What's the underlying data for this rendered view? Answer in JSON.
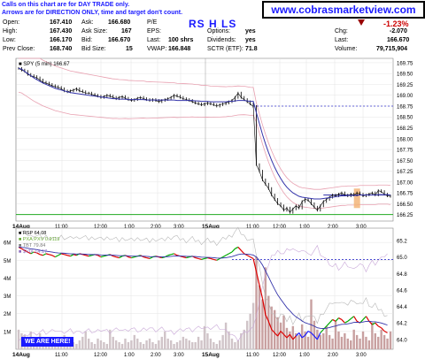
{
  "notice": {
    "line1": "Calls on this chart are for DAY TRADE only.",
    "line2": "Arrows are for DIRECTION ONLY, time and target don't count."
  },
  "ticker": "RS H LS",
  "site": "www.cobrasmarketview.com",
  "quote": {
    "open_label": "Open:",
    "open": "167.410",
    "high_label": "High:",
    "high": "167.430",
    "low_label": "Low:",
    "low": "166.170",
    "prev_label": "Prev Close:",
    "prev": "168.740",
    "ask_label": "Ask:",
    "ask": "166.680",
    "asksize_label": "Ask Size:",
    "asksize": "167",
    "bid_label": "Bid:",
    "bid": "166.670",
    "bidsize_label": "Bid Size:",
    "bidsize": "15",
    "pe_label": "P/E",
    "pe": "",
    "eps_label": "EPS:",
    "eps": "",
    "last_label": "Last:",
    "last": "100 shrs",
    "vwap_label": "VWAP:",
    "vwap": "166.848",
    "options_label": "Options:",
    "options": "yes",
    "dividends_label": "Dividends:",
    "dividends": "yes",
    "sctr_label": "SCTR (ETF):",
    "sctr": "71.8",
    "pct": "-1.23%",
    "chg_label": "Chg:",
    "chg": "-2.070",
    "last2_label": "Last:",
    "last2": "166.670",
    "volume_label": "Volume:",
    "volume": "79,715,904"
  },
  "badge": "WE ARE HERE!",
  "colors": {
    "accent": "#1a1aff",
    "neg": "#cc0000",
    "price": "#000000",
    "ma": "#3333aa",
    "band": "#e8a0b0",
    "highlight": "#f2b070"
  },
  "chart_data": [
    {
      "type": "line",
      "legend": [
        "SPY (5 min) 166.67"
      ],
      "xticks": [
        "14Aug",
        "11:00",
        "12:00",
        "1:00",
        "2:00",
        "3:00",
        "15Aug",
        "11:00",
        "12:00",
        "1:00",
        "2:00",
        "3:00"
      ],
      "yticks": [
        166.25,
        166.5,
        166.75,
        167.0,
        167.25,
        167.5,
        167.75,
        168.0,
        168.25,
        168.5,
        168.75,
        169.0,
        169.25,
        169.5,
        169.75
      ],
      "ylim": [
        166.1,
        169.85
      ],
      "x_session_index": [
        0,
        78,
        102
      ],
      "price_close": [
        169.62,
        169.58,
        169.55,
        169.48,
        169.45,
        169.43,
        169.4,
        169.35,
        169.3,
        169.28,
        169.25,
        169.22,
        169.2,
        169.18,
        169.15,
        169.1,
        169.08,
        169.1,
        169.12,
        169.15,
        169.1,
        169.08,
        169.05,
        169.05,
        169.02,
        169.0,
        168.98,
        168.95,
        168.97,
        169.0,
        168.98,
        168.95,
        168.92,
        168.95,
        168.97,
        168.93,
        168.9,
        168.88,
        168.9,
        168.93,
        168.95,
        168.92,
        168.9,
        168.88,
        168.9,
        168.88,
        168.85,
        168.88,
        168.9,
        168.92,
        168.95,
        169.0,
        168.98,
        168.95,
        168.92,
        168.9,
        168.88,
        168.85,
        168.82,
        168.8,
        168.78,
        168.8,
        168.82,
        168.8,
        168.78,
        168.75,
        168.78,
        168.8,
        168.82,
        168.85,
        168.88,
        168.95,
        169.05,
        168.95,
        168.9,
        168.85,
        168.8,
        168.74,
        167.4,
        167.25,
        167.05,
        166.95,
        166.85,
        166.7,
        166.6,
        166.5,
        166.45,
        166.35,
        166.4,
        166.3,
        166.38,
        166.45,
        166.4,
        166.55,
        166.6,
        166.58,
        166.5,
        166.42,
        166.35,
        166.45,
        166.55,
        166.6,
        166.65,
        166.7,
        166.68,
        166.72,
        166.75,
        166.7,
        166.68,
        166.72,
        166.7,
        166.75,
        166.72,
        166.68,
        166.7,
        166.72,
        166.75,
        166.7,
        166.8,
        166.78,
        166.72,
        166.68,
        166.67
      ],
      "ma_blue": [
        169.62,
        169.6,
        169.55,
        169.5,
        169.45,
        169.4,
        169.36,
        169.32,
        169.28,
        169.25,
        169.22,
        169.19,
        169.16,
        169.14,
        169.12,
        169.1,
        169.08,
        169.06,
        169.05,
        169.04,
        169.03,
        169.02,
        169.01,
        169.0,
        168.99,
        168.98,
        168.97,
        168.96,
        168.95,
        168.94,
        168.93,
        168.92,
        168.92,
        168.91,
        168.91,
        168.91,
        168.9,
        168.9,
        168.9,
        168.9,
        168.9,
        168.9,
        168.89,
        168.89,
        168.89,
        168.89,
        168.89,
        168.89,
        168.89,
        168.89,
        168.89,
        168.89,
        168.88,
        168.88,
        168.88,
        168.88,
        168.88,
        168.88,
        168.87,
        168.87,
        168.86,
        168.86,
        168.86,
        168.85,
        168.85,
        168.85,
        168.85,
        168.85,
        168.85,
        168.86,
        168.86,
        168.87,
        168.88,
        168.88,
        168.88,
        168.87,
        168.86,
        168.86,
        168.6,
        168.35,
        168.1,
        167.88,
        167.68,
        167.5,
        167.34,
        167.2,
        167.08,
        166.97,
        166.88,
        166.81,
        166.75,
        166.71,
        166.67,
        166.65,
        166.64,
        166.63,
        166.62,
        166.61,
        166.61,
        166.61,
        166.62,
        166.63,
        166.64,
        166.65,
        166.66,
        166.67,
        166.68,
        166.68,
        166.69,
        166.69,
        166.69,
        166.69,
        166.7,
        166.7,
        166.7,
        166.7,
        166.7,
        166.7,
        166.71,
        166.71,
        166.71,
        166.71,
        166.7
      ],
      "resistance_dashed": 168.75,
      "support_green": 166.25,
      "highlight_box": [
        166.4,
        166.85
      ]
    },
    {
      "type": "line",
      "legend": [
        "RSP 64.08",
        "PXA:PXV 0.9113",
        "TBT 79.84",
        "$VIX 14.17"
      ],
      "xticks": [
        "14Aug",
        "11:00",
        "12:00",
        "1:00",
        "2:00",
        "3:00",
        "15Aug",
        "11:00",
        "12:00",
        "1:00",
        "2:00",
        "3:00"
      ],
      "yticks_left": [
        "1M",
        "2M",
        "3M",
        "4M",
        "5M",
        "6M"
      ],
      "yticks_right": [
        64.0,
        64.2,
        64.4,
        64.6,
        64.8,
        65.0,
        65.2
      ],
      "volume": [
        1.1,
        0.9,
        0.8,
        0.7,
        1.0,
        0.6,
        0.5,
        0.9,
        0.6,
        0.4,
        0.5,
        0.7,
        0.5,
        0.3,
        0.5,
        0.8,
        0.6,
        0.4,
        0.4,
        0.3,
        0.5,
        0.7,
        1.0,
        0.6,
        0.4,
        0.3,
        0.6,
        0.5,
        0.4,
        0.3,
        1.1,
        0.7,
        0.5,
        0.4,
        0.3,
        0.6,
        0.4,
        0.5,
        0.8,
        0.6,
        0.4,
        0.3,
        0.5,
        0.6,
        0.4,
        0.3,
        0.5,
        0.7,
        1.0,
        0.6,
        0.5,
        0.3,
        0.4,
        0.5,
        0.7,
        0.6,
        0.5,
        0.4,
        0.4,
        0.7,
        0.5,
        1.3,
        0.9,
        0.6,
        0.4,
        0.3,
        0.5,
        0.8,
        1.5,
        1.0,
        0.6,
        0.4,
        0.5,
        0.9,
        1.1,
        1.6,
        2.0,
        2.6,
        5.2,
        3.6,
        2.8,
        4.6,
        3.0,
        2.4,
        2.2,
        1.8,
        1.5,
        1.9,
        1.2,
        1.0,
        1.3,
        0.9,
        0.8,
        1.4,
        1.0,
        0.7,
        2.8,
        1.6,
        1.1,
        0.8,
        0.9,
        1.3,
        0.8,
        0.6,
        1.6,
        1.0,
        0.7,
        0.9,
        0.6,
        0.5,
        1.1,
        0.8,
        0.6,
        1.0,
        0.7,
        0.5,
        1.5,
        0.9,
        0.7,
        1.1,
        0.8,
        0.6,
        1.0
      ],
      "rsp": [
        65.12,
        65.1,
        65.08,
        65.06,
        65.04,
        65.06,
        65.05,
        65.03,
        65.02,
        65.04,
        65.03,
        65.02,
        65.0,
        65.02,
        65.04,
        65.03,
        65.02,
        65.01,
        65.03,
        65.02,
        65.04,
        65.03,
        65.02,
        65.01,
        65.02,
        65.03,
        65.02,
        65.0,
        65.01,
        65.02,
        65.03,
        65.01,
        65.0,
        64.99,
        65.01,
        65.02,
        65.0,
        64.99,
        65.0,
        65.01,
        65.02,
        65.0,
        64.99,
        64.98,
        65.0,
        65.01,
        65.0,
        64.99,
        65.0,
        65.02,
        65.03,
        65.04,
        65.02,
        65.01,
        65.0,
        64.99,
        65.0,
        65.01,
        64.99,
        64.98,
        64.97,
        64.98,
        64.99,
        64.98,
        64.97,
        64.96,
        64.98,
        65.0,
        65.02,
        65.04,
        65.06,
        65.1,
        65.12,
        65.08,
        65.04,
        65.02,
        65.0,
        64.98,
        64.82,
        64.66,
        64.5,
        64.3,
        64.22,
        64.12,
        64.08,
        64.04,
        64.1,
        64.06,
        64.02,
        64.06,
        64.0,
        64.04,
        64.08,
        64.02,
        64.05,
        64.1,
        64.08,
        64.04,
        64.0,
        64.08,
        64.12,
        64.16,
        64.2,
        64.24,
        64.22,
        64.26,
        64.24,
        64.2,
        64.22,
        64.25,
        64.28,
        64.22,
        64.2,
        64.24,
        64.28,
        64.22,
        64.18,
        64.2,
        64.16,
        64.14,
        64.1,
        64.08
      ],
      "resistance_dashed": 64.97,
      "session_start_index": 78
    }
  ]
}
